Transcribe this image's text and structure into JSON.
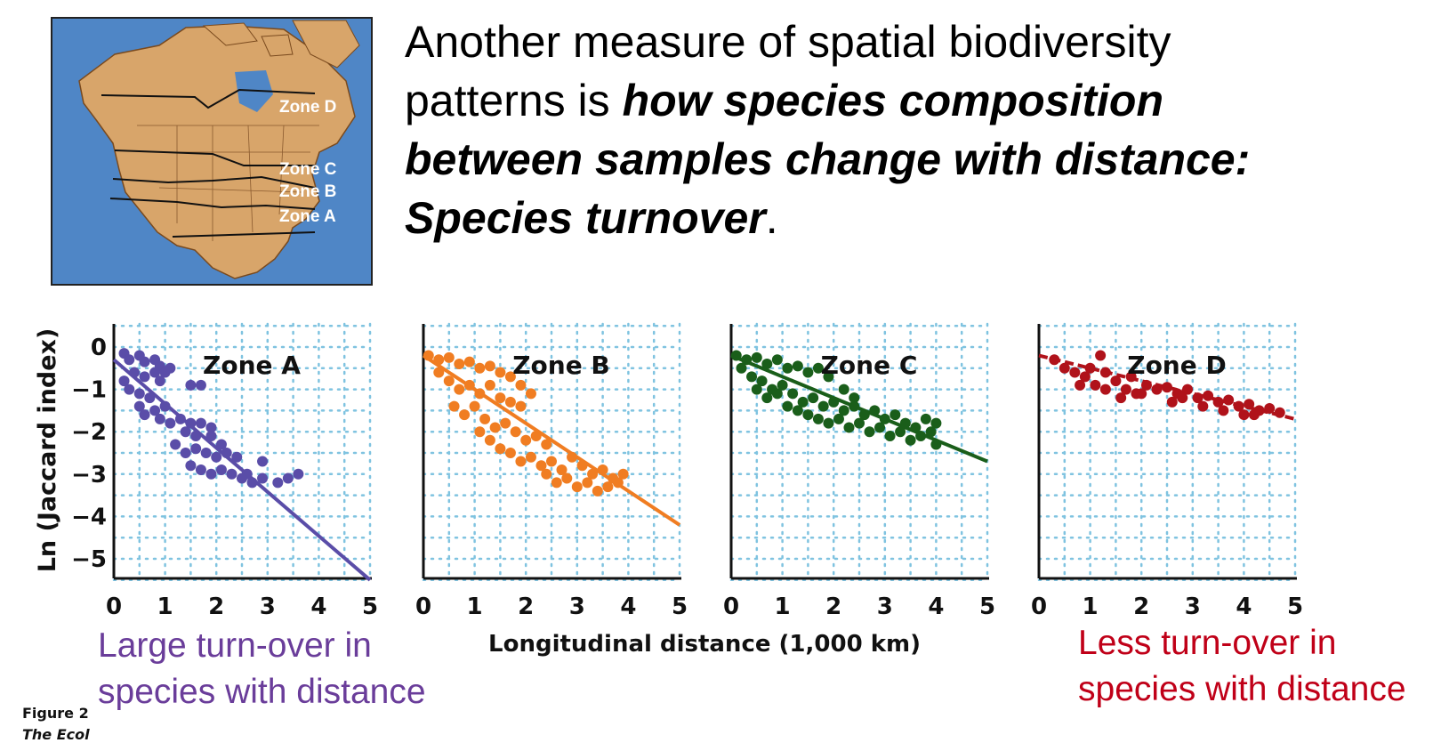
{
  "headline": {
    "line1": "Another measure of spatial biodiversity",
    "line2_plain": "patterns is ",
    "line2_em": "how species composition",
    "line3_em": "between samples change with distance:",
    "line4_em": "Species turnover",
    "line4_tail": "."
  },
  "map": {
    "zone_labels": [
      "Zone D",
      "Zone C",
      "Zone B",
      "Zone A"
    ],
    "colors": {
      "ocean": "#4f86c6",
      "land": "#d8a56a",
      "border": "#7a4a1e",
      "label": "#ffffff"
    }
  },
  "chart_data": [
    {
      "type": "scatter",
      "title": "Zone A",
      "xlabel": "Longitudinal distance (1,000 km)",
      "ylabel": "Ln (Jaccard index)",
      "xlim": [
        0,
        5
      ],
      "ylim": [
        -5.5,
        0.5
      ],
      "xticks": [
        "0",
        "1",
        "2",
        "3",
        "4",
        "5"
      ],
      "yticks": [
        "0",
        "−1",
        "−2",
        "−3",
        "−4",
        "−5"
      ],
      "grid": true,
      "color": "#5a4da8",
      "trendline": {
        "x": [
          0,
          5
        ],
        "y": [
          -0.3,
          -5.5
        ]
      },
      "points": [
        [
          0.2,
          -0.15
        ],
        [
          0.3,
          -0.3
        ],
        [
          0.5,
          -0.2
        ],
        [
          0.6,
          -0.35
        ],
        [
          0.8,
          -0.3
        ],
        [
          0.9,
          -0.45
        ],
        [
          0.4,
          -0.6
        ],
        [
          0.6,
          -0.7
        ],
        [
          0.8,
          -0.6
        ],
        [
          0.9,
          -0.8
        ],
        [
          1.0,
          -0.6
        ],
        [
          0.2,
          -0.8
        ],
        [
          0.3,
          -1.0
        ],
        [
          0.5,
          -1.1
        ],
        [
          0.7,
          -1.2
        ],
        [
          0.5,
          -1.4
        ],
        [
          0.6,
          -1.6
        ],
        [
          0.8,
          -1.5
        ],
        [
          0.9,
          -1.7
        ],
        [
          1.0,
          -1.4
        ],
        [
          1.1,
          -1.8
        ],
        [
          1.3,
          -1.7
        ],
        [
          1.5,
          -1.8
        ],
        [
          1.7,
          -1.8
        ],
        [
          1.9,
          -1.9
        ],
        [
          1.4,
          -2.0
        ],
        [
          1.6,
          -2.1
        ],
        [
          1.2,
          -2.3
        ],
        [
          1.4,
          -2.5
        ],
        [
          1.6,
          -2.4
        ],
        [
          1.8,
          -2.5
        ],
        [
          2.0,
          -2.6
        ],
        [
          2.2,
          -2.5
        ],
        [
          2.4,
          -2.6
        ],
        [
          1.5,
          -2.8
        ],
        [
          1.7,
          -2.9
        ],
        [
          1.9,
          -3.0
        ],
        [
          2.1,
          -2.9
        ],
        [
          2.3,
          -3.0
        ],
        [
          2.5,
          -3.1
        ],
        [
          2.7,
          -3.2
        ],
        [
          2.9,
          -3.1
        ],
        [
          1.9,
          -2.1
        ],
        [
          2.1,
          -2.3
        ],
        [
          2.6,
          -3.0
        ],
        [
          2.9,
          -2.7
        ],
        [
          3.2,
          -3.2
        ],
        [
          3.4,
          -3.1
        ],
        [
          3.6,
          -3.0
        ],
        [
          1.5,
          -0.9
        ],
        [
          1.7,
          -0.9
        ],
        [
          1.1,
          -0.5
        ]
      ]
    },
    {
      "type": "scatter",
      "title": "Zone B",
      "xlabel": "Longitudinal distance (1,000 km)",
      "ylabel": "",
      "xlim": [
        0,
        5
      ],
      "ylim": [
        -5.5,
        0.5
      ],
      "xticks": [
        "0",
        "1",
        "2",
        "3",
        "4",
        "5"
      ],
      "yticks": [],
      "grid": true,
      "color": "#f07d22",
      "trendline": {
        "x": [
          0,
          5
        ],
        "y": [
          -0.2,
          -4.2
        ]
      },
      "points": [
        [
          0.1,
          -0.2
        ],
        [
          0.3,
          -0.3
        ],
        [
          0.5,
          -0.25
        ],
        [
          0.7,
          -0.4
        ],
        [
          0.9,
          -0.35
        ],
        [
          1.1,
          -0.5
        ],
        [
          1.3,
          -0.45
        ],
        [
          1.5,
          -0.6
        ],
        [
          1.7,
          -0.7
        ],
        [
          1.9,
          -0.9
        ],
        [
          2.1,
          -1.1
        ],
        [
          0.3,
          -0.6
        ],
        [
          0.5,
          -0.8
        ],
        [
          0.7,
          -1.0
        ],
        [
          0.9,
          -0.9
        ],
        [
          1.1,
          -1.1
        ],
        [
          1.3,
          -0.9
        ],
        [
          1.5,
          -1.2
        ],
        [
          1.7,
          -1.3
        ],
        [
          1.9,
          -1.4
        ],
        [
          0.6,
          -1.4
        ],
        [
          0.8,
          -1.6
        ],
        [
          1.0,
          -1.4
        ],
        [
          1.2,
          -1.7
        ],
        [
          1.4,
          -1.9
        ],
        [
          1.6,
          -1.8
        ],
        [
          1.8,
          -2.0
        ],
        [
          2.0,
          -2.2
        ],
        [
          2.2,
          -2.1
        ],
        [
          2.4,
          -2.3
        ],
        [
          1.1,
          -2.0
        ],
        [
          1.3,
          -2.2
        ],
        [
          1.5,
          -2.4
        ],
        [
          1.7,
          -2.5
        ],
        [
          1.9,
          -2.7
        ],
        [
          2.1,
          -2.6
        ],
        [
          2.3,
          -2.8
        ],
        [
          2.5,
          -2.7
        ],
        [
          2.7,
          -2.9
        ],
        [
          2.9,
          -2.6
        ],
        [
          3.1,
          -2.8
        ],
        [
          3.3,
          -3.0
        ],
        [
          3.5,
          -2.9
        ],
        [
          3.7,
          -3.1
        ],
        [
          3.9,
          -3.0
        ],
        [
          2.4,
          -3.0
        ],
        [
          2.6,
          -3.2
        ],
        [
          2.8,
          -3.1
        ],
        [
          3.0,
          -3.3
        ],
        [
          3.2,
          -3.2
        ],
        [
          3.4,
          -3.4
        ],
        [
          3.6,
          -3.3
        ],
        [
          3.8,
          -3.2
        ]
      ]
    },
    {
      "type": "scatter",
      "title": "Zone C",
      "xlabel": "Longitudinal distance (1,000 km)",
      "ylabel": "",
      "xlim": [
        0,
        5
      ],
      "ylim": [
        -5.5,
        0.5
      ],
      "xticks": [
        "0",
        "1",
        "2",
        "3",
        "4",
        "5"
      ],
      "yticks": [],
      "grid": true,
      "color": "#1a5e1a",
      "trendline": {
        "x": [
          0,
          5
        ],
        "y": [
          -0.2,
          -2.7
        ]
      },
      "points": [
        [
          0.1,
          -0.2
        ],
        [
          0.3,
          -0.3
        ],
        [
          0.5,
          -0.25
        ],
        [
          0.7,
          -0.4
        ],
        [
          0.9,
          -0.3
        ],
        [
          1.1,
          -0.5
        ],
        [
          1.3,
          -0.45
        ],
        [
          1.5,
          -0.6
        ],
        [
          1.7,
          -0.5
        ],
        [
          1.9,
          -0.7
        ],
        [
          0.2,
          -0.5
        ],
        [
          0.4,
          -0.7
        ],
        [
          0.6,
          -0.8
        ],
        [
          0.8,
          -1.0
        ],
        [
          1.0,
          -0.9
        ],
        [
          1.2,
          -1.1
        ],
        [
          1.4,
          -1.3
        ],
        [
          1.6,
          -1.2
        ],
        [
          1.8,
          -1.4
        ],
        [
          2.0,
          -1.3
        ],
        [
          2.2,
          -1.5
        ],
        [
          2.4,
          -1.4
        ],
        [
          2.6,
          -1.6
        ],
        [
          0.5,
          -1.0
        ],
        [
          0.7,
          -1.2
        ],
        [
          0.9,
          -1.1
        ],
        [
          1.1,
          -1.4
        ],
        [
          1.3,
          -1.5
        ],
        [
          1.5,
          -1.6
        ],
        [
          1.7,
          -1.7
        ],
        [
          1.9,
          -1.8
        ],
        [
          2.1,
          -1.7
        ],
        [
          2.3,
          -1.9
        ],
        [
          2.5,
          -1.8
        ],
        [
          2.7,
          -2.0
        ],
        [
          2.9,
          -1.9
        ],
        [
          3.1,
          -2.1
        ],
        [
          3.3,
          -2.0
        ],
        [
          3.5,
          -2.2
        ],
        [
          3.7,
          -2.1
        ],
        [
          3.9,
          -2.0
        ],
        [
          2.2,
          -1.0
        ],
        [
          2.4,
          -1.2
        ],
        [
          2.8,
          -1.5
        ],
        [
          3.0,
          -1.7
        ],
        [
          3.2,
          -1.6
        ],
        [
          3.4,
          -1.8
        ],
        [
          3.6,
          -1.9
        ],
        [
          3.8,
          -1.7
        ],
        [
          4.0,
          -2.3
        ],
        [
          4.0,
          -1.8
        ]
      ]
    },
    {
      "type": "scatter",
      "title": "Zone D",
      "xlabel": "Longitudinal distance (1,000 km)",
      "ylabel": "",
      "xlim": [
        0,
        5
      ],
      "ylim": [
        -5.5,
        0.5
      ],
      "xticks": [
        "0",
        "1",
        "2",
        "3",
        "4",
        "5"
      ],
      "yticks": [],
      "grid": true,
      "color": "#b0121a",
      "trendline": {
        "x": [
          0,
          5
        ],
        "y": [
          -0.2,
          -1.7
        ]
      },
      "points": [
        [
          0.3,
          -0.3
        ],
        [
          0.5,
          -0.5
        ],
        [
          0.7,
          -0.6
        ],
        [
          0.9,
          -0.7
        ],
        [
          1.0,
          -0.5
        ],
        [
          1.2,
          -0.2
        ],
        [
          1.3,
          -0.6
        ],
        [
          1.1,
          -0.9
        ],
        [
          0.8,
          -0.9
        ],
        [
          1.3,
          -1.0
        ],
        [
          1.5,
          -0.8
        ],
        [
          1.7,
          -1.0
        ],
        [
          1.8,
          -0.7
        ],
        [
          1.9,
          -1.1
        ],
        [
          2.1,
          -0.9
        ],
        [
          2.3,
          -1.0
        ],
        [
          2.5,
          -0.95
        ],
        [
          2.7,
          -1.1
        ],
        [
          2.9,
          -1.0
        ],
        [
          3.1,
          -1.2
        ],
        [
          3.3,
          -1.15
        ],
        [
          3.5,
          -1.3
        ],
        [
          3.7,
          -1.25
        ],
        [
          3.9,
          -1.4
        ],
        [
          4.1,
          -1.35
        ],
        [
          4.3,
          -1.5
        ],
        [
          4.5,
          -1.45
        ],
        [
          4.7,
          -1.55
        ],
        [
          2.6,
          -1.3
        ],
        [
          2.8,
          -1.2
        ],
        [
          3.2,
          -1.4
        ],
        [
          3.6,
          -1.5
        ],
        [
          4.0,
          -1.6
        ],
        [
          4.2,
          -1.6
        ],
        [
          1.6,
          -1.2
        ],
        [
          2.0,
          -1.1
        ]
      ]
    }
  ],
  "captions": {
    "left_line1": "Large turn-over in",
    "left_line2": "species with distance",
    "right_line1": "Less turn-over in",
    "right_line2": "species with distance"
  },
  "figure_credit": {
    "line1": "Figure 2",
    "line2": "The Ecol"
  }
}
